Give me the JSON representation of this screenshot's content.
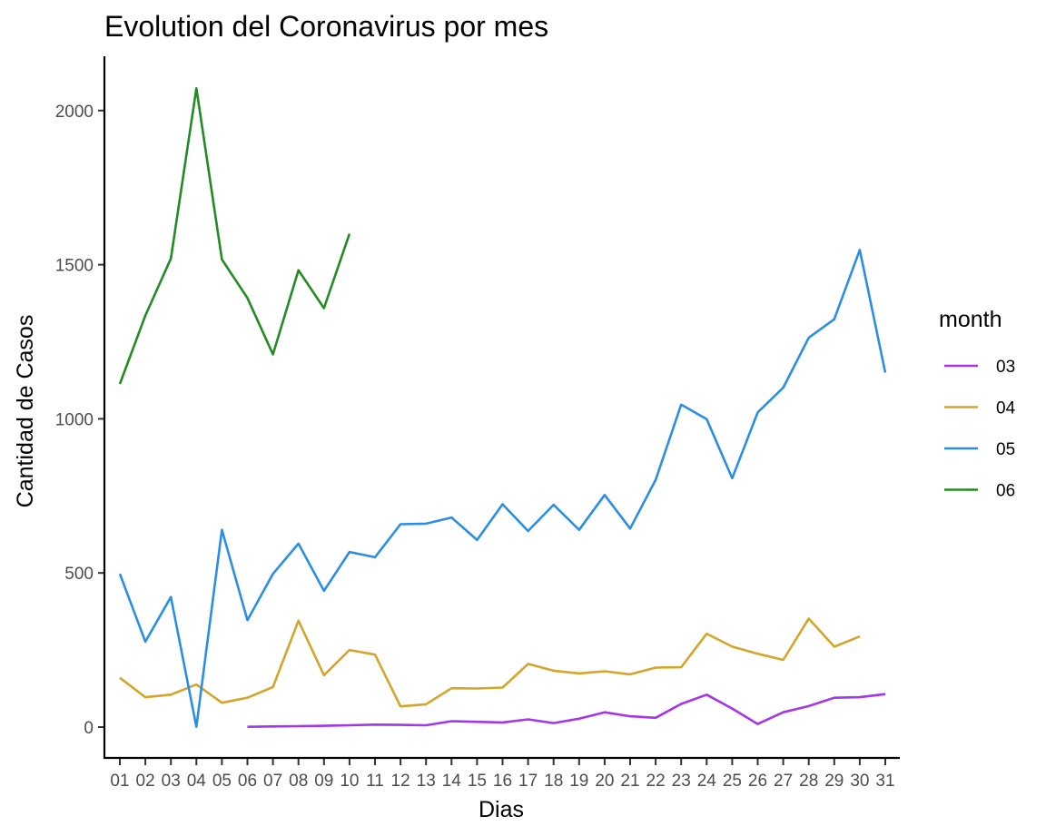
{
  "chart_data": {
    "type": "line",
    "title": "Evolution del Coronavirus por mes",
    "xlabel": "Dias",
    "ylabel": "Cantidad de Casos",
    "x": [
      "01",
      "02",
      "03",
      "04",
      "05",
      "06",
      "07",
      "08",
      "09",
      "10",
      "11",
      "12",
      "13",
      "14",
      "15",
      "16",
      "17",
      "18",
      "19",
      "20",
      "21",
      "22",
      "23",
      "24",
      "25",
      "26",
      "27",
      "28",
      "29",
      "30",
      "31"
    ],
    "ylim": [
      -60,
      2170
    ],
    "yticks": [
      0,
      500,
      1000,
      1500,
      2000
    ],
    "grid": false,
    "legend": {
      "title": "month",
      "placement": "right"
    },
    "series": [
      {
        "name": "03",
        "color": "#a336e8",
        "values": [
          null,
          null,
          null,
          null,
          null,
          1,
          2,
          3,
          4,
          6,
          8,
          7,
          6,
          19,
          17,
          15,
          25,
          13,
          27,
          48,
          35,
          30,
          75,
          105,
          60,
          10,
          48,
          68,
          95,
          97,
          107
        ]
      },
      {
        "name": "04",
        "color": "#d4a52a",
        "values": [
          160,
          97,
          105,
          138,
          79,
          95,
          130,
          345,
          168,
          250,
          235,
          67,
          74,
          126,
          125,
          128,
          205,
          183,
          174,
          181,
          171,
          193,
          194,
          303,
          261,
          238,
          218,
          352,
          261,
          294,
          null
        ]
      },
      {
        "name": "05",
        "color": "#2b8ee6",
        "values": [
          497,
          277,
          422,
          1,
          640,
          347,
          497,
          595,
          442,
          568,
          551,
          658,
          660,
          680,
          607,
          723,
          636,
          721,
          640,
          753,
          644,
          802,
          1046,
          999,
          807,
          1021,
          1101,
          1263,
          1323,
          1548,
          1150
        ]
      },
      {
        "name": "06",
        "color": "#228c22",
        "values": [
          1113,
          1335,
          1520,
          2072,
          1517,
          1392,
          1209,
          1482,
          1359,
          1600,
          null,
          null,
          null,
          null,
          null,
          null,
          null,
          null,
          null,
          null,
          null,
          null,
          null,
          null,
          null,
          null,
          null,
          null,
          null,
          null,
          null
        ]
      }
    ]
  }
}
